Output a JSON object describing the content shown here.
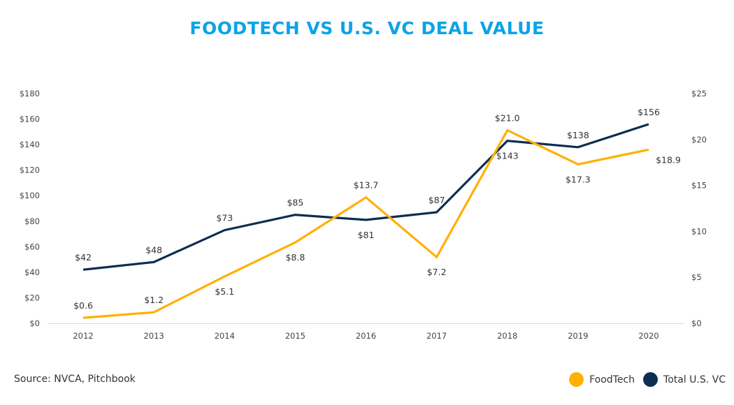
{
  "chart_data": {
    "type": "line",
    "title": "FOODTECH VS U.S. VC DEAL VALUE",
    "x": [
      "2012",
      "2013",
      "2014",
      "2015",
      "2016",
      "2017",
      "2018",
      "2019",
      "2020"
    ],
    "left_axis": {
      "ylim": [
        0,
        180
      ],
      "ticks": [
        0,
        20,
        40,
        60,
        80,
        100,
        120,
        140,
        160,
        180
      ],
      "tick_labels": [
        "$0",
        "$20",
        "$40",
        "$60",
        "$80",
        "$100",
        "$120",
        "$140",
        "$160",
        "$180"
      ]
    },
    "right_axis": {
      "ylim": [
        0,
        25
      ],
      "ticks": [
        0,
        5,
        10,
        15,
        20,
        25
      ],
      "tick_labels": [
        "$0",
        "$5",
        "$10",
        "$15",
        "$20",
        "$25"
      ]
    },
    "series": [
      {
        "name": "FoodTech",
        "axis": "right",
        "color": "#FFB000",
        "values": [
          0.6,
          1.2,
          5.1,
          8.8,
          13.7,
          7.2,
          21.0,
          17.3,
          18.9
        ],
        "labels": [
          "$0.6",
          "$1.2",
          "$5.1",
          "$8.8",
          "$13.7",
          "$7.2",
          "$21.0",
          "$17.3",
          "$18.9"
        ],
        "label_positions": [
          "above",
          "above",
          "below",
          "below",
          "above",
          "below",
          "above",
          "below",
          "below-right"
        ]
      },
      {
        "name": "Total U.S. VC",
        "axis": "left",
        "color": "#0E2D52",
        "values": [
          42,
          48,
          73,
          85,
          81,
          87,
          143,
          138,
          156
        ],
        "labels": [
          "$42",
          "$48",
          "$73",
          "$85",
          "$81",
          "$87",
          "$143",
          "$138",
          "$156"
        ],
        "label_positions": [
          "above",
          "above",
          "above",
          "above",
          "below",
          "above",
          "below",
          "above",
          "above"
        ]
      }
    ],
    "xlabel": "",
    "ylabel": "",
    "grid": false,
    "legend_placement": "bottom-right"
  },
  "title": "FOODTECH VS U.S. VC DEAL VALUE",
  "source_note": "Source:  NVCA, Pitchbook",
  "legend": [
    {
      "label": "FoodTech",
      "color": "#FFB000"
    },
    {
      "label": "Total U.S. VC",
      "color": "#0E2D52"
    }
  ]
}
